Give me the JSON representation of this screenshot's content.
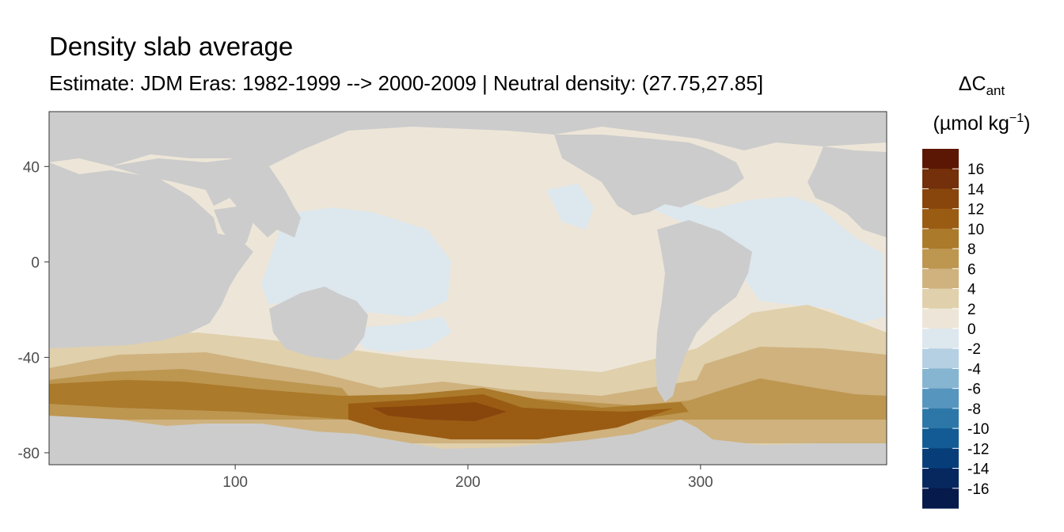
{
  "title": "Density slab average",
  "subtitle": "Estimate: JDM Eras: 1982-1999 --> 2000-2009 | Neutral density: (27.75,27.85]",
  "chart_data": {
    "type": "heatmap",
    "xlim": [
      20,
      380
    ],
    "ylim": [
      -85,
      63
    ],
    "x_ticks": [
      100,
      200,
      300
    ],
    "y_ticks": [
      40,
      0,
      -40,
      -80
    ],
    "grid": false,
    "legend_placement": "right",
    "legend_title_main": "ΔC",
    "legend_title_sub": "ant",
    "legend_unit_pre": "(µmol kg",
    "legend_unit_sup": "−1",
    "legend_unit_post": ")",
    "legend_breaks": [
      "16",
      "14",
      "12",
      "10",
      "8",
      "6",
      "4",
      "2",
      "0",
      "-2",
      "-4",
      "-6",
      "-8",
      "-10",
      "-12",
      "-14",
      "-16"
    ],
    "legend_colors": [
      "#5c1604",
      "#73300a",
      "#88450c",
      "#9a5c13",
      "#ab7a2a",
      "#bd9650",
      "#cfb27e",
      "#e0d0ac",
      "#ede6d8",
      "#dde7ee",
      "#b5d0e2",
      "#86b5d2",
      "#5695be",
      "#2d77a8",
      "#125b94",
      "#073e79",
      "#06285f",
      "#061a4c"
    ],
    "colors": {
      "land": "#cccccc",
      "no_data": "#ffffff"
    }
  }
}
